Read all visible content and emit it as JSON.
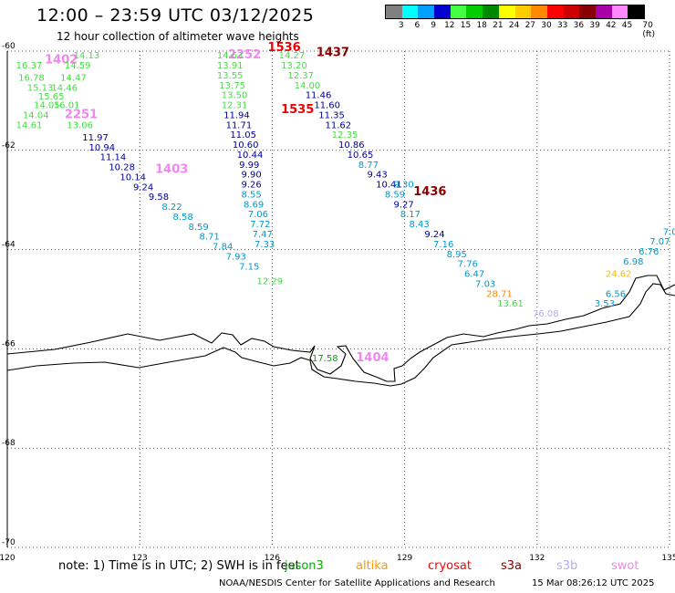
{
  "header": {
    "title": "12:00 – 23:59 UTC 03/12/2025",
    "subtitle": "12 hour collection of altimeter wave heights"
  },
  "legend": {
    "unit": "(ft)",
    "bins": [
      {
        "label": "3",
        "color": "#808080"
      },
      {
        "label": "6",
        "color": "#00ffff"
      },
      {
        "label": "9",
        "color": "#00a0ff"
      },
      {
        "label": "12",
        "color": "#0000d0"
      },
      {
        "label": "15",
        "color": "#44ff44"
      },
      {
        "label": "18",
        "color": "#00cc00"
      },
      {
        "label": "21",
        "color": "#008800"
      },
      {
        "label": "24",
        "color": "#ffff00"
      },
      {
        "label": "27",
        "color": "#ffcc00"
      },
      {
        "label": "30",
        "color": "#ff8800"
      },
      {
        "label": "33",
        "color": "#ff0000"
      },
      {
        "label": "36",
        "color": "#cc0000"
      },
      {
        "label": "39",
        "color": "#880000"
      },
      {
        "label": "42",
        "color": "#aa00aa"
      },
      {
        "label": "45",
        "color": "#ff88ff"
      },
      {
        "label": "70",
        "color": "#000000"
      }
    ]
  },
  "map": {
    "lon_range": [
      120,
      135
    ],
    "lat_range": [
      -70,
      -60
    ],
    "lon_ticks": [
      "120",
      "123",
      "126",
      "129",
      "132",
      "135"
    ],
    "lat_ticks": [
      "-60",
      "-62",
      "-64",
      "-66",
      "-68",
      "-70"
    ],
    "grid": "dotted"
  },
  "tracks": [
    {
      "mission": "swot",
      "color": "#ee88ee",
      "points": [
        {
          "lon": 120.85,
          "lat": -60.25,
          "value": "1402"
        },
        {
          "lon": 121.3,
          "lat": -61.35,
          "value": "2251"
        },
        {
          "lon": 123.35,
          "lat": -62.45,
          "value": "1403"
        },
        {
          "lon": 125.0,
          "lat": -60.15,
          "value": "2252"
        },
        {
          "lon": 127.9,
          "lat": -66.25,
          "value": "1404"
        }
      ]
    },
    {
      "mission": "cryosat",
      "color": "#ee0000",
      "points": [
        {
          "lon": 125.9,
          "lat": -60.0,
          "value": "1536"
        },
        {
          "lon": 126.2,
          "lat": -61.25,
          "value": "1535"
        }
      ]
    },
    {
      "mission": "s3a",
      "color": "#880000",
      "points": [
        {
          "lon": 127.0,
          "lat": -60.1,
          "value": "1437"
        },
        {
          "lon": 129.2,
          "lat": -62.9,
          "value": "1436"
        }
      ]
    },
    {
      "mission": "track-a",
      "color": "#44dd44",
      "points": [
        {
          "lon": 120.2,
          "lat": -60.35,
          "value": "16.37"
        },
        {
          "lon": 121.3,
          "lat": -60.35,
          "value": "14.59"
        },
        {
          "lon": 121.5,
          "lat": -60.15,
          "value": "14.13"
        }
      ]
    },
    {
      "mission": "track-b",
      "color": "#44dd44",
      "points": [
        {
          "lon": 120.25,
          "lat": -60.6,
          "value": "16.78"
        },
        {
          "lon": 121.2,
          "lat": -60.6,
          "value": "14.47"
        },
        {
          "lon": 120.45,
          "lat": -60.8,
          "value": "15.13"
        },
        {
          "lon": 121.0,
          "lat": -60.8,
          "value": "14.46"
        },
        {
          "lon": 120.7,
          "lat": -60.97,
          "value": "15.65"
        },
        {
          "lon": 120.6,
          "lat": -61.15,
          "value": "14.05"
        },
        {
          "lon": 121.05,
          "lat": -61.15,
          "value": "16.01"
        },
        {
          "lon": 120.35,
          "lat": -61.35,
          "value": "14.04"
        },
        {
          "lon": 120.2,
          "lat": -61.55,
          "value": "14.61"
        },
        {
          "lon": 121.35,
          "lat": -61.55,
          "value": "13.06"
        }
      ]
    },
    {
      "mission": "track-c",
      "color": "#000099",
      "points": [
        {
          "lon": 121.7,
          "lat": -61.8,
          "value": "11.97"
        },
        {
          "lon": 121.85,
          "lat": -62.0,
          "value": "10.94"
        },
        {
          "lon": 122.1,
          "lat": -62.2,
          "value": "11.14"
        },
        {
          "lon": 122.3,
          "lat": -62.4,
          "value": "10.28"
        },
        {
          "lon": 122.55,
          "lat": -62.6,
          "value": "10.14"
        },
        {
          "lon": 122.85,
          "lat": -62.8,
          "value": "9.24"
        },
        {
          "lon": 123.2,
          "lat": -63.0,
          "value": "9.58"
        }
      ]
    },
    {
      "mission": "track-d",
      "color": "#0099cc",
      "points": [
        {
          "lon": 123.5,
          "lat": -63.2,
          "value": "8.22"
        },
        {
          "lon": 123.75,
          "lat": -63.4,
          "value": "8.58"
        },
        {
          "lon": 124.1,
          "lat": -63.6,
          "value": "8.59"
        },
        {
          "lon": 124.35,
          "lat": -63.8,
          "value": "8.71"
        },
        {
          "lon": 124.65,
          "lat": -64.0,
          "value": "7.84"
        },
        {
          "lon": 124.95,
          "lat": -64.2,
          "value": "7.93"
        },
        {
          "lon": 125.25,
          "lat": -64.4,
          "value": "7.15"
        }
      ]
    },
    {
      "mission": "track-e",
      "color": "#44dd44",
      "points": [
        {
          "lon": 125.65,
          "lat": -64.7,
          "value": "12.29"
        }
      ]
    },
    {
      "mission": "track-f",
      "color": "#44dd44",
      "points": [
        {
          "lon": 124.75,
          "lat": -60.15,
          "value": "14.63"
        },
        {
          "lon": 124.75,
          "lat": -60.35,
          "value": "13.91"
        },
        {
          "lon": 124.75,
          "lat": -60.55,
          "value": "13.55"
        },
        {
          "lon": 124.8,
          "lat": -60.75,
          "value": "13.75"
        },
        {
          "lon": 124.85,
          "lat": -60.95,
          "value": "13.50"
        },
        {
          "lon": 124.85,
          "lat": -61.15,
          "value": "12.31"
        }
      ]
    },
    {
      "mission": "track-g",
      "color": "#000099",
      "points": [
        {
          "lon": 124.9,
          "lat": -61.35,
          "value": "11.94"
        },
        {
          "lon": 124.95,
          "lat": -61.55,
          "value": "11.71"
        },
        {
          "lon": 125.05,
          "lat": -61.75,
          "value": "11.05"
        },
        {
          "lon": 125.1,
          "lat": -61.95,
          "value": "10.60"
        },
        {
          "lon": 125.2,
          "lat": -62.15,
          "value": "10.44"
        },
        {
          "lon": 125.25,
          "lat": -62.35,
          "value": "9.99"
        },
        {
          "lon": 125.3,
          "lat": -62.55,
          "value": "9.90"
        },
        {
          "lon": 125.3,
          "lat": -62.75,
          "value": "9.26"
        }
      ]
    },
    {
      "mission": "track-h",
      "color": "#0099cc",
      "points": [
        {
          "lon": 125.3,
          "lat": -62.95,
          "value": "8.55"
        },
        {
          "lon": 125.35,
          "lat": -63.15,
          "value": "8.69"
        },
        {
          "lon": 125.45,
          "lat": -63.35,
          "value": "7.06"
        },
        {
          "lon": 125.5,
          "lat": -63.55,
          "value": "7.72"
        },
        {
          "lon": 125.55,
          "lat": -63.75,
          "value": "7.47"
        },
        {
          "lon": 125.6,
          "lat": -63.95,
          "value": "7.33"
        }
      ]
    },
    {
      "mission": "track-i",
      "color": "#44dd44",
      "points": [
        {
          "lon": 126.15,
          "lat": -60.15,
          "value": "14.27"
        },
        {
          "lon": 126.2,
          "lat": -60.35,
          "value": "13.20"
        },
        {
          "lon": 126.35,
          "lat": -60.55,
          "value": "12.37"
        },
        {
          "lon": 126.5,
          "lat": -60.75,
          "value": "14.00"
        }
      ]
    },
    {
      "mission": "track-j",
      "color": "#000099",
      "points": [
        {
          "lon": 126.75,
          "lat": -60.95,
          "value": "11.46"
        },
        {
          "lon": 126.95,
          "lat": -61.15,
          "value": "11.60"
        },
        {
          "lon": 127.05,
          "lat": -61.35,
          "value": "11.35"
        },
        {
          "lon": 127.2,
          "lat": -61.55,
          "value": "11.62"
        }
      ]
    },
    {
      "mission": "track-k",
      "color": "#44dd44",
      "points": [
        {
          "lon": 127.35,
          "lat": -61.75,
          "value": "12.35"
        }
      ]
    },
    {
      "mission": "track-l",
      "color": "#000099",
      "points": [
        {
          "lon": 127.5,
          "lat": -61.95,
          "value": "10.86"
        },
        {
          "lon": 127.7,
          "lat": -62.15,
          "value": "10.65"
        }
      ]
    },
    {
      "mission": "track-m",
      "color": "#0099cc",
      "points": [
        {
          "lon": 127.95,
          "lat": -62.35,
          "value": "8.77"
        }
      ]
    },
    {
      "mission": "track-n",
      "color": "#000099",
      "points": [
        {
          "lon": 128.15,
          "lat": -62.55,
          "value": "9.43"
        },
        {
          "lon": 128.35,
          "lat": -62.75,
          "value": "10.41"
        }
      ]
    },
    {
      "mission": "track-o",
      "color": "#0099cc",
      "points": [
        {
          "lon": 128.75,
          "lat": -62.75,
          "value": "9.30"
        },
        {
          "lon": 128.55,
          "lat": -62.95,
          "value": "8.59"
        }
      ]
    },
    {
      "mission": "track-p",
      "color": "#000099",
      "points": [
        {
          "lon": 128.75,
          "lat": -63.15,
          "value": "9.27"
        }
      ]
    },
    {
      "mission": "track-q",
      "color": "#0099cc",
      "points": [
        {
          "lon": 128.9,
          "lat": -63.35,
          "value": "8.17"
        },
        {
          "lon": 129.1,
          "lat": -63.55,
          "value": "8.43"
        }
      ]
    },
    {
      "mission": "track-r",
      "color": "#000099",
      "points": [
        {
          "lon": 129.45,
          "lat": -63.75,
          "value": "9.24"
        }
      ]
    },
    {
      "mission": "track-s",
      "color": "#0099cc",
      "points": [
        {
          "lon": 129.65,
          "lat": -63.95,
          "value": "7.16"
        },
        {
          "lon": 129.95,
          "lat": -64.15,
          "value": "8.95"
        },
        {
          "lon": 130.2,
          "lat": -64.35,
          "value": "7.76"
        },
        {
          "lon": 130.35,
          "lat": -64.55,
          "value": "6.47"
        },
        {
          "lon": 130.6,
          "lat": -64.75,
          "value": "7.03"
        }
      ]
    },
    {
      "mission": "track-t",
      "color": "#ff8800",
      "points": [
        {
          "lon": 130.85,
          "lat": -64.95,
          "value": "28.71"
        }
      ]
    },
    {
      "mission": "track-u",
      "color": "#44dd44",
      "points": [
        {
          "lon": 131.1,
          "lat": -65.15,
          "value": "13.61"
        }
      ]
    },
    {
      "mission": "track-v",
      "color": "#bbaaee",
      "points": [
        {
          "lon": 131.9,
          "lat": -65.35,
          "value": "76.08"
        }
      ]
    },
    {
      "mission": "track-w",
      "color": "#00aa00",
      "points": [
        {
          "lon": 126.9,
          "lat": -66.25,
          "value": "17.58"
        }
      ]
    },
    {
      "mission": "track-x",
      "color": "#0099cc",
      "points": [
        {
          "lon": 134.85,
          "lat": -63.7,
          "value": "7.0"
        },
        {
          "lon": 134.55,
          "lat": -63.9,
          "value": "7.07"
        },
        {
          "lon": 134.3,
          "lat": -64.1,
          "value": "6.76"
        },
        {
          "lon": 133.95,
          "lat": -64.3,
          "value": "6.98"
        }
      ]
    },
    {
      "mission": "track-y",
      "color": "#ffbb00",
      "points": [
        {
          "lon": 133.55,
          "lat": -64.55,
          "value": "24.62"
        }
      ]
    },
    {
      "mission": "track-z",
      "color": "#0099cc",
      "points": [
        {
          "lon": 133.55,
          "lat": -64.95,
          "value": "6.56"
        },
        {
          "lon": 133.3,
          "lat": -65.15,
          "value": "3.53"
        }
      ]
    }
  ],
  "footer": {
    "note": "note:  1) Time is in UTC;  2) SWH is in feet",
    "missions": [
      {
        "label": "jason3",
        "color": "#00aa00"
      },
      {
        "label": "altika",
        "color": "#ff9900"
      },
      {
        "label": "cryosat",
        "color": "#ff0000"
      },
      {
        "label": "s3a",
        "color": "#880000"
      },
      {
        "label": "s3b",
        "color": "#bbaaee"
      },
      {
        "label": "swot",
        "color": "#ee88ee"
      }
    ],
    "credit": "NOAA/NESDIS Center for Satellite Applications and Research",
    "timestamp": "15 Mar 08:26:12 UTC 2025"
  }
}
